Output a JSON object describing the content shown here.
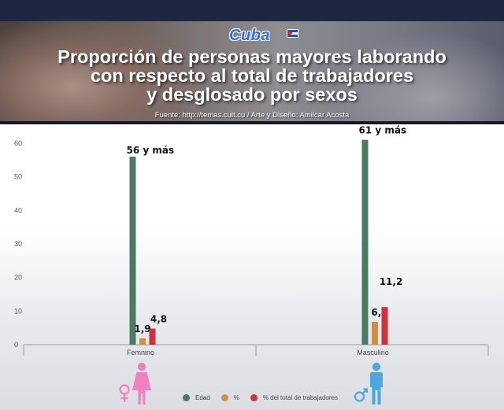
{
  "header": {
    "logo_text": "Cuba",
    "title_lines": [
      "Proporción de personas mayores laborando",
      "con respecto al total de trabajadores",
      "y desglosado por sexos"
    ],
    "source": "Fuente:  http://temas.cult.cu / Arte y Diseño: Amilcar Acosta"
  },
  "colors": {
    "edad": "#4a7a63",
    "pct": "#d28f3e",
    "pct_total": "#d1313a",
    "female_icon": "#f27fc0",
    "male_icon": "#4aa8e0"
  },
  "icons": {
    "female": "female-figure-icon",
    "male": "male-figure-icon"
  },
  "chart_data": {
    "type": "bar",
    "title": "Proporción de personas mayores laborando con respecto al total de trabajadores y desglosado por sexos",
    "categories": [
      "Femnino",
      "Masculino"
    ],
    "series": [
      {
        "name": "Edad",
        "values": [
          56,
          61
        ],
        "labels": [
          "56 y más",
          "61 y más"
        ]
      },
      {
        "name": "%",
        "values": [
          1.9,
          6.8
        ],
        "labels": [
          "1,9",
          "6,8"
        ]
      },
      {
        "name": "% del total de trabajadores",
        "values": [
          4.8,
          11.2
        ],
        "labels": [
          "4,8",
          "11,2"
        ]
      }
    ],
    "ylim": [
      0,
      60
    ],
    "yticks": [
      0,
      10,
      20,
      30,
      40,
      50,
      60
    ],
    "grid": false,
    "legend": "bottom-center"
  }
}
